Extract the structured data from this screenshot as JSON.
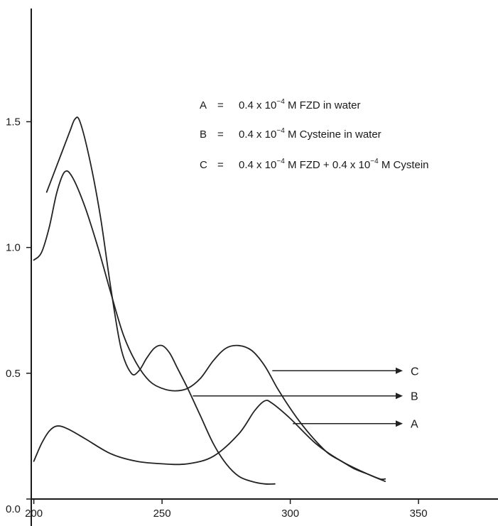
{
  "chart_data": {
    "type": "line",
    "x_ticks": [
      200,
      250,
      300,
      350
    ],
    "y_ticks": [
      "0.0",
      "0.5",
      "1.0",
      "1.5"
    ],
    "xlim": [
      199,
      381
    ],
    "ylim": [
      0,
      1.95
    ],
    "grid": false,
    "legend": [
      {
        "key": "A",
        "eq": "=",
        "pre": "0.4 x 10",
        "exp": "−4",
        "post": " M FZD in water"
      },
      {
        "key": "B",
        "eq": "=",
        "pre": "0.4 x 10",
        "exp": "−4",
        "post": "  M Cysteine in water"
      },
      {
        "key": "C",
        "eq": "=",
        "pre": "0.4 x 10",
        "exp": "−4",
        "post": " M  FZD  + 0.4 x 10",
        "exp2": "−4",
        "post2": "  M  Cystein"
      }
    ],
    "series": [
      {
        "name": "A",
        "x": [
          200,
          203,
          206,
          209,
          213,
          220,
          230,
          240,
          250,
          260,
          270,
          280,
          286,
          290,
          293,
          300,
          310,
          320,
          330,
          337
        ],
        "y": [
          0.15,
          0.22,
          0.27,
          0.29,
          0.28,
          0.24,
          0.18,
          0.15,
          0.14,
          0.14,
          0.17,
          0.26,
          0.35,
          0.39,
          0.38,
          0.32,
          0.22,
          0.15,
          0.1,
          0.07
        ]
      },
      {
        "name": "B",
        "x": [
          200,
          203,
          206,
          209,
          212,
          215,
          220,
          225,
          230,
          235,
          240,
          245,
          250,
          255,
          260,
          265,
          270,
          275,
          280,
          285,
          290,
          295,
          300,
          305,
          310,
          315,
          320,
          325,
          330,
          335,
          337
        ],
        "y": [
          0.95,
          0.98,
          1.08,
          1.22,
          1.3,
          1.28,
          1.16,
          1.0,
          0.82,
          0.65,
          0.54,
          0.47,
          0.44,
          0.43,
          0.44,
          0.48,
          0.55,
          0.6,
          0.61,
          0.59,
          0.53,
          0.44,
          0.36,
          0.29,
          0.23,
          0.18,
          0.15,
          0.12,
          0.1,
          0.08,
          0.08
        ]
      },
      {
        "name": "C",
        "x": [
          205,
          208,
          211,
          214,
          216,
          218,
          222,
          226,
          230,
          234,
          238,
          241,
          244,
          247,
          250,
          253,
          256,
          260,
          265,
          270,
          275,
          280,
          285,
          290,
          294
        ],
        "y": [
          1.22,
          1.3,
          1.38,
          1.46,
          1.51,
          1.5,
          1.34,
          1.12,
          0.84,
          0.6,
          0.5,
          0.51,
          0.56,
          0.6,
          0.61,
          0.58,
          0.52,
          0.44,
          0.33,
          0.22,
          0.14,
          0.09,
          0.07,
          0.06,
          0.06
        ]
      }
    ],
    "pointers": [
      {
        "name": "C",
        "x": 293,
        "y": 0.51
      },
      {
        "name": "B",
        "x": 262,
        "y": 0.41
      },
      {
        "name": "A",
        "x": 301,
        "y": 0.3
      }
    ]
  }
}
